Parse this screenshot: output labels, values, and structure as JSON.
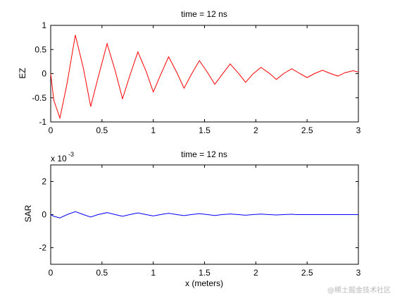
{
  "chart_data": [
    {
      "type": "line",
      "title": "time = 12 ns",
      "xlabel": "",
      "ylabel": "EZ",
      "xlim": [
        0,
        3
      ],
      "ylim": [
        -1,
        1
      ],
      "xticks": [
        "0",
        "0.5",
        "1",
        "1.5",
        "2",
        "2.5",
        "3"
      ],
      "yticks": [
        "-1",
        "-0.5",
        "0",
        "0.5",
        "1"
      ],
      "line_color": "#ff0000",
      "series": [
        {
          "x": [
            0,
            0.03,
            0.09,
            0.16,
            0.24,
            0.32,
            0.39,
            0.46,
            0.55,
            0.63,
            0.7,
            0.77,
            0.85,
            0.93,
            1.0,
            1.07,
            1.15,
            1.23,
            1.3,
            1.37,
            1.45,
            1.53,
            1.6,
            1.67,
            1.75,
            1.83,
            1.9,
            1.97,
            2.05,
            2.13,
            2.2,
            2.27,
            2.35,
            2.43,
            2.5,
            2.57,
            2.65,
            2.73,
            2.8,
            2.87,
            2.95,
            3.0
          ],
          "y": [
            0.0,
            -0.55,
            -0.92,
            -0.2,
            0.8,
            0.1,
            -0.68,
            -0.1,
            0.62,
            0.05,
            -0.52,
            -0.05,
            0.45,
            0.05,
            -0.38,
            -0.03,
            0.35,
            0.02,
            -0.3,
            -0.02,
            0.27,
            0.02,
            -0.22,
            -0.02,
            0.2,
            0.01,
            -0.18,
            -0.01,
            0.13,
            0.01,
            -0.12,
            0.0,
            0.1,
            0.0,
            -0.08,
            0.0,
            0.07,
            0.0,
            -0.05,
            0.02,
            0.06,
            0.03
          ]
        }
      ],
      "grid": false
    },
    {
      "type": "line",
      "title": "time = 12 ns",
      "xlabel": "x (meters)",
      "ylabel": "SAR",
      "scale_label": "x 10",
      "scale_exponent": "-3",
      "xlim": [
        0,
        3
      ],
      "ylim": [
        -3,
        3
      ],
      "xticks": [
        "0",
        "0.5",
        "1",
        "1.5",
        "2",
        "2.5",
        "3"
      ],
      "yticks": [
        "-2",
        "0",
        "2"
      ],
      "line_color": "#0000ff",
      "series": [
        {
          "x": [
            0,
            0.03,
            0.09,
            0.16,
            0.24,
            0.32,
            0.39,
            0.46,
            0.55,
            0.63,
            0.7,
            0.77,
            0.85,
            0.93,
            1.0,
            1.07,
            1.15,
            1.23,
            1.3,
            1.37,
            1.45,
            1.53,
            1.6,
            1.67,
            1.75,
            1.83,
            1.9,
            1.97,
            2.05,
            2.13,
            2.2,
            2.27,
            2.35,
            2.4,
            2.5,
            3.0
          ],
          "y": [
            0.0,
            -0.1,
            -0.2,
            0.0,
            0.18,
            0.0,
            -0.15,
            0.0,
            0.12,
            0.0,
            -0.1,
            0.0,
            0.1,
            0.0,
            -0.08,
            0.0,
            0.08,
            0.0,
            -0.06,
            0.0,
            0.06,
            0.0,
            -0.05,
            0.0,
            0.04,
            0.0,
            -0.04,
            0.0,
            0.03,
            0.0,
            -0.02,
            0.0,
            0.02,
            0.0,
            0.0,
            0.0
          ]
        }
      ],
      "grid": false
    }
  ],
  "watermark": "@稀土掘金技术社区"
}
